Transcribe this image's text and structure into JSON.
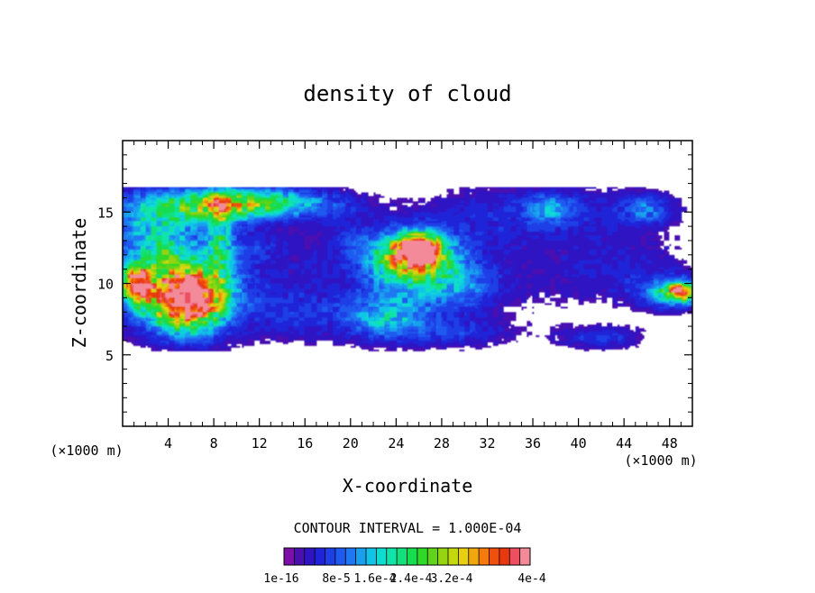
{
  "chart_data": {
    "type": "heatmap",
    "title": "density of cloud",
    "xlabel": "X-coordinate",
    "ylabel": "Z-coordinate",
    "x_unit": "(×1000 m)",
    "x_unit_right": "(×1000 m)",
    "xlim": [
      0,
      50
    ],
    "ylim": [
      0,
      20
    ],
    "x_ticks": [
      4,
      8,
      12,
      16,
      20,
      24,
      28,
      32,
      36,
      40,
      44,
      48
    ],
    "y_ticks": [
      5,
      10,
      15
    ],
    "contour_interval_text": "CONTOUR INTERVAL = 1.000E-04",
    "colorbar": {
      "colors": [
        "#7d0fa8",
        "#4a0fb0",
        "#2f14c4",
        "#1f24d8",
        "#1e3ee6",
        "#1f5af0",
        "#1e78f2",
        "#18a0ee",
        "#10c4e8",
        "#0fdcd0",
        "#10e4a8",
        "#12e07c",
        "#16dc50",
        "#30d828",
        "#60d418",
        "#94d410",
        "#c4d810",
        "#e8d010",
        "#f0a80e",
        "#f47a0c",
        "#f0500c",
        "#e8380e",
        "#ec5060",
        "#f28a9a"
      ],
      "labels": [
        "1e-16",
        "8e-5",
        "1.6e-4",
        "2.4e-4",
        "3.2e-4",
        "4e-4"
      ]
    },
    "blobs": [
      {
        "x": 0.5,
        "z": 12.0,
        "rx": 2.0,
        "rz": 5.2,
        "v": 0.02
      },
      {
        "x": 8.0,
        "z": 11.0,
        "rx": 7.0,
        "rz": 5.5,
        "v": 0.02
      },
      {
        "x": 5.5,
        "z": 10.2,
        "rx": 4.5,
        "rz": 2.8,
        "v": 0.05
      },
      {
        "x": 3.0,
        "z": 14.0,
        "rx": 3.0,
        "rz": 2.0,
        "v": 0.04
      },
      {
        "x": 11.0,
        "z": 16.0,
        "rx": 9.0,
        "rz": 1.1,
        "v": 0.02
      },
      {
        "x": 7.0,
        "z": 15.3,
        "rx": 6.0,
        "rz": 1.2,
        "v": 0.06
      },
      {
        "x": 11.5,
        "z": 15.6,
        "rx": 5.0,
        "rz": 0.9,
        "v": 0.06
      },
      {
        "x": 18.0,
        "z": 15.3,
        "rx": 4.0,
        "rz": 1.2,
        "v": 0.02
      },
      {
        "x": 8.5,
        "z": 13.5,
        "rx": 1.0,
        "rz": 3.0,
        "v": 0.05
      },
      {
        "x": 5.5,
        "z": 8.8,
        "rx": 3.2,
        "rz": 2.1,
        "v": 0.17
      },
      {
        "x": 1.3,
        "z": 10.0,
        "rx": 1.2,
        "rz": 1.3,
        "v": 0.14
      },
      {
        "x": 3.5,
        "z": 12.2,
        "rx": 1.5,
        "rz": 1.0,
        "v": 0.03
      },
      {
        "x": 15.0,
        "z": 8.0,
        "rx": 4.5,
        "rz": 2.0,
        "v": 0.02
      },
      {
        "x": 12.0,
        "z": 12.5,
        "rx": 4.0,
        "rz": 1.0,
        "v": 0.015
      },
      {
        "x": 20.0,
        "z": 13.0,
        "rx": 3.5,
        "rz": 1.4,
        "v": 0.02
      },
      {
        "x": 25.5,
        "z": 11.2,
        "rx": 5.0,
        "rz": 2.8,
        "v": 0.04
      },
      {
        "x": 25.5,
        "z": 11.8,
        "rx": 3.2,
        "rz": 1.6,
        "v": 0.12
      },
      {
        "x": 26.0,
        "z": 12.5,
        "rx": 1.5,
        "rz": 0.8,
        "v": 0.17
      },
      {
        "x": 24.0,
        "z": 8.0,
        "rx": 7.5,
        "rz": 2.6,
        "v": 0.025
      },
      {
        "x": 23.0,
        "z": 7.5,
        "rx": 3.0,
        "rz": 1.3,
        "v": 0.04
      },
      {
        "x": 30.0,
        "z": 10.0,
        "rx": 3.0,
        "rz": 1.5,
        "v": 0.03
      },
      {
        "x": 32.0,
        "z": 14.8,
        "rx": 7.0,
        "rz": 2.4,
        "v": 0.018
      },
      {
        "x": 42.0,
        "z": 15.0,
        "rx": 9.0,
        "rz": 2.2,
        "v": 0.02
      },
      {
        "x": 37.5,
        "z": 15.3,
        "rx": 2.0,
        "rz": 1.0,
        "v": 0.04
      },
      {
        "x": 46.0,
        "z": 15.2,
        "rx": 2.0,
        "rz": 1.0,
        "v": 0.035
      },
      {
        "x": 38.0,
        "z": 10.5,
        "rx": 7.5,
        "rz": 3.0,
        "v": 0.015
      },
      {
        "x": 45.5,
        "z": 11.0,
        "rx": 6.0,
        "rz": 2.0,
        "v": 0.015
      },
      {
        "x": 48.5,
        "z": 9.3,
        "rx": 3.5,
        "rz": 1.2,
        "v": 0.05
      },
      {
        "x": 49.0,
        "z": 9.4,
        "rx": 1.5,
        "rz": 0.6,
        "v": 0.12
      },
      {
        "x": 42.0,
        "z": 6.2,
        "rx": 4.0,
        "rz": 0.9,
        "v": 0.03
      },
      {
        "x": 30.0,
        "z": 6.5,
        "rx": 5.0,
        "rz": 1.0,
        "v": 0.02
      },
      {
        "x": 17.0,
        "z": 11.0,
        "rx": 3.0,
        "rz": 1.0,
        "v": 0.01
      }
    ]
  }
}
